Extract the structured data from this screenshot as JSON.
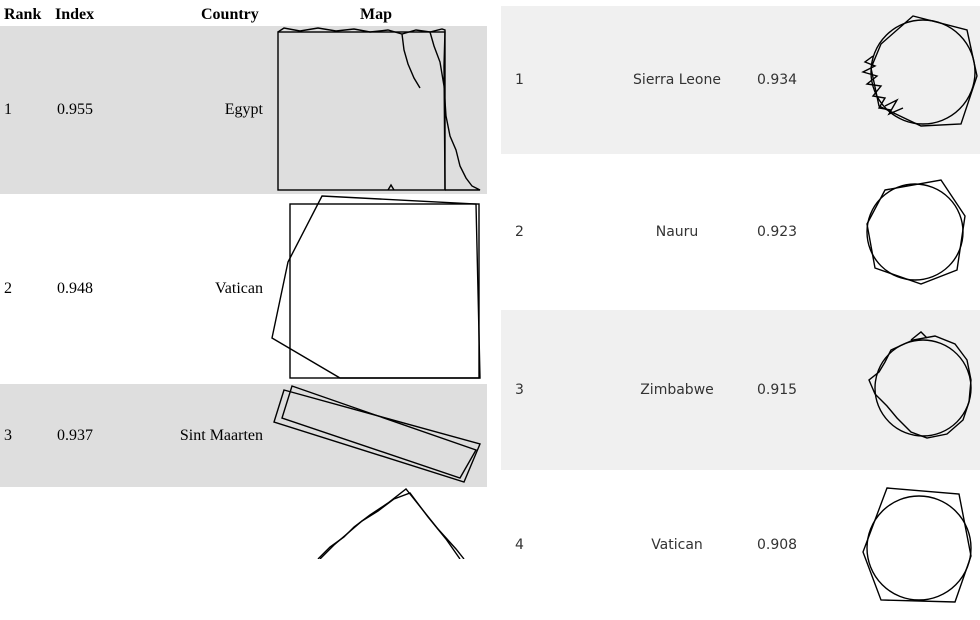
{
  "left_table": {
    "headers": {
      "rank": "Rank",
      "index": "Index",
      "country": "Country",
      "map": "Map"
    },
    "rows": [
      {
        "rank": "1",
        "index": "0.955",
        "country": "Egypt"
      },
      {
        "rank": "2",
        "index": "0.948",
        "country": "Vatican"
      },
      {
        "rank": "3",
        "index": "0.937",
        "country": "Sint Maarten"
      },
      {
        "rank": "",
        "index": "",
        "country": ""
      }
    ]
  },
  "right_table": {
    "rows": [
      {
        "rank": "1",
        "country": "Sierra Leone",
        "index": "0.934"
      },
      {
        "rank": "2",
        "country": "Nauru",
        "index": "0.923"
      },
      {
        "rank": "3",
        "country": "Zimbabwe",
        "index": "0.915"
      },
      {
        "rank": "4",
        "country": "Vatican",
        "index": "0.908"
      }
    ]
  },
  "colors": {
    "left_shade": "#dedede",
    "right_shade": "#f0f0f0",
    "stroke": "#000000"
  }
}
